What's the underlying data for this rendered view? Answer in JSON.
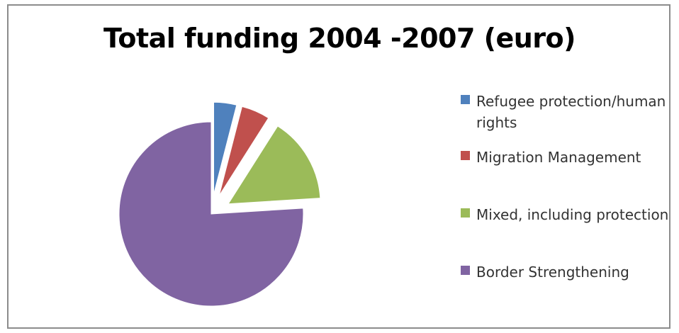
{
  "chart_data": {
    "type": "pie",
    "title": "Total funding 2004 -2007 (euro)",
    "series": [
      {
        "values": [
          4,
          5,
          15,
          76
        ]
      }
    ],
    "categories": [
      "Refugee protection/human rights",
      "Migration Management",
      "Mixed, including protection",
      "Border Strengthening"
    ],
    "values": [
      4,
      5,
      15,
      76
    ],
    "exploded": true,
    "legend_position": "right",
    "colors": [
      "#4f81bd",
      "#c0504d",
      "#9bbb59",
      "#8064a2"
    ]
  },
  "legend": {
    "items": [
      {
        "label": "Refugee protection/human rights",
        "color": "#4f81bd"
      },
      {
        "label": "Migration Management",
        "color": "#c0504d"
      },
      {
        "label": "Mixed, including protection",
        "color": "#9bbb59"
      },
      {
        "label": "Border Strengthening",
        "color": "#8064a2"
      }
    ]
  }
}
